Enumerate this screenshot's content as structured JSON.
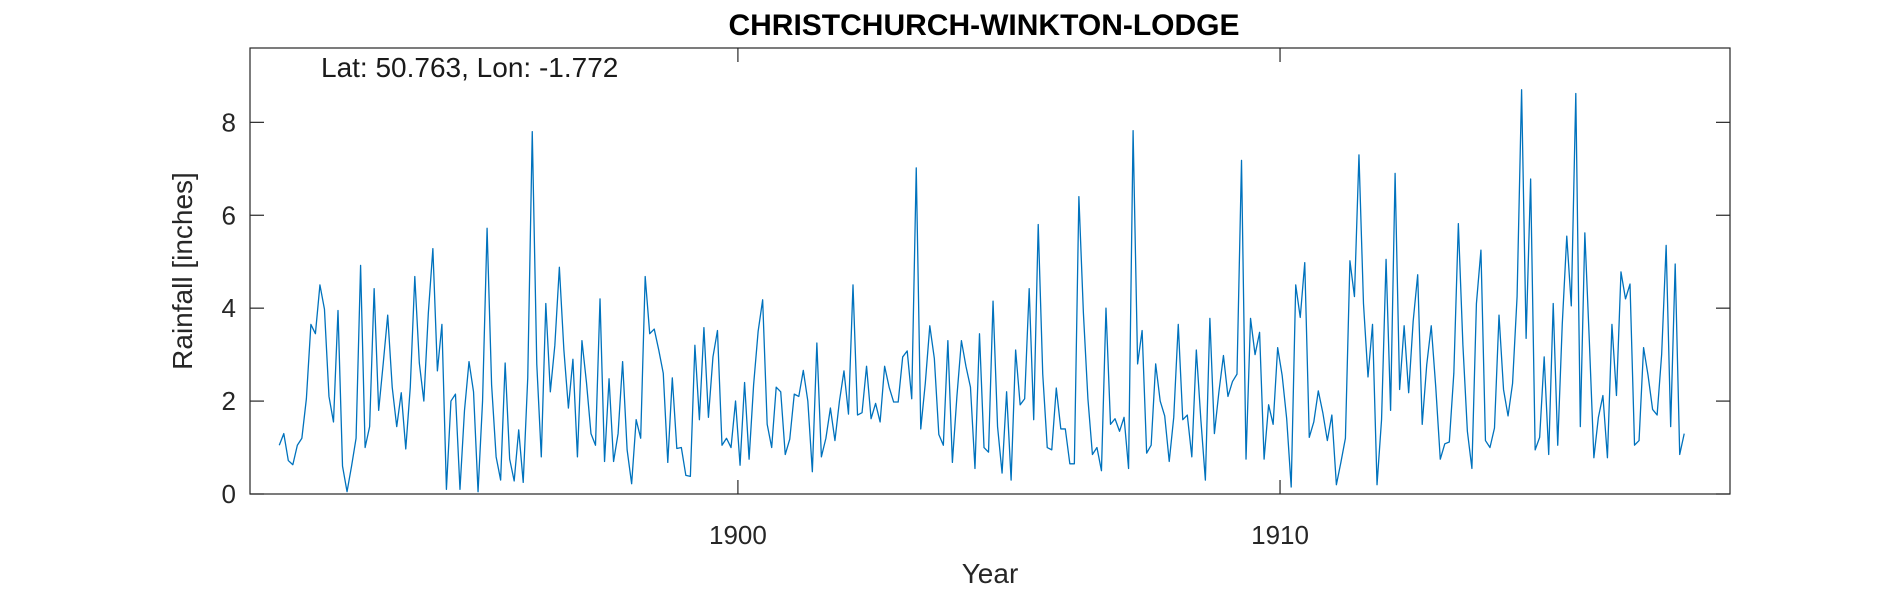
{
  "chart_data": {
    "type": "line",
    "title": "CHRISTCHURCH-WINKTON-LODGE",
    "annotation": "Lat: 50.763, Lon: -1.772",
    "xlabel": "Year",
    "ylabel": "Rainfall [inches]",
    "xlim": [
      1891.0,
      1918.3
    ],
    "ylim": [
      0,
      9.6
    ],
    "xticks": [
      1900,
      1910
    ],
    "yticks": [
      0,
      2,
      4,
      6,
      8
    ],
    "grid": false,
    "color": "#0072bd",
    "series": [
      {
        "x_start": 1891.54,
        "x_step": 0.08333,
        "values": [
          1.05,
          1.3,
          0.72,
          0.63,
          1.05,
          1.2,
          2.05,
          3.65,
          3.45,
          4.5,
          3.98,
          2.1,
          1.55,
          3.95,
          0.6,
          0.05,
          0.6,
          1.2,
          4.92,
          1.0,
          1.45,
          4.42,
          1.8,
          2.8,
          3.85,
          2.3,
          1.45,
          2.18,
          0.97,
          2.3,
          4.68,
          2.82,
          2.0,
          3.9,
          5.28,
          2.65,
          3.65,
          0.1,
          2.0,
          2.15,
          0.1,
          1.8,
          2.85,
          2.2,
          0.05,
          2.0,
          5.72,
          2.35,
          0.8,
          0.3,
          2.82,
          0.75,
          0.28,
          1.38,
          0.25,
          2.5,
          7.8,
          2.8,
          0.8,
          4.1,
          2.2,
          3.2,
          4.88,
          3.1,
          1.85,
          2.9,
          0.8,
          3.3,
          2.4,
          1.3,
          1.05,
          4.2,
          0.7,
          2.48,
          0.7,
          1.3,
          2.85,
          0.95,
          0.22,
          1.6,
          1.2,
          4.68,
          3.45,
          3.55,
          3.1,
          2.6,
          0.68,
          2.5,
          0.98,
          1.0,
          0.4,
          0.38,
          3.2,
          1.6,
          3.58,
          1.65,
          2.95,
          3.52,
          1.05,
          1.2,
          1.0,
          2.0,
          0.62,
          2.4,
          0.75,
          2.35,
          3.5,
          4.18,
          1.5,
          1.0,
          2.3,
          2.2,
          0.85,
          1.18,
          2.15,
          2.1,
          2.66,
          2.0,
          0.48,
          3.25,
          0.8,
          1.2,
          1.85,
          1.15,
          2.0,
          2.65,
          1.72,
          4.5,
          1.7,
          1.75,
          2.75,
          1.62,
          1.95,
          1.55,
          2.75,
          2.3,
          1.98,
          1.98,
          2.95,
          3.08,
          2.05,
          7.02,
          1.4,
          2.38,
          3.62,
          2.92,
          1.28,
          1.05,
          3.3,
          0.68,
          2.1,
          3.3,
          2.75,
          2.3,
          0.55,
          3.45,
          1.0,
          0.9,
          4.15,
          1.45,
          0.45,
          2.2,
          0.3,
          3.1,
          1.92,
          2.05,
          4.42,
          1.6,
          5.8,
          2.58,
          1.0,
          0.95,
          2.28,
          1.4,
          1.4,
          0.65,
          0.65,
          6.4,
          3.9,
          2.05,
          0.85,
          1.0,
          0.5,
          4.0,
          1.5,
          1.62,
          1.35,
          1.65,
          0.55,
          7.82,
          2.8,
          3.52,
          0.88,
          1.05,
          2.8,
          2.0,
          1.68,
          0.7,
          1.65,
          3.65,
          1.6,
          1.7,
          0.8,
          3.1,
          1.6,
          0.3,
          3.78,
          1.3,
          2.2,
          2.98,
          2.1,
          2.42,
          2.58,
          7.18,
          0.75,
          3.78,
          3.0,
          3.48,
          0.75,
          1.92,
          1.5,
          3.15,
          2.55,
          1.62,
          0.15,
          4.5,
          3.8,
          4.98,
          1.22,
          1.55,
          2.22,
          1.75,
          1.15,
          1.7,
          0.2,
          0.68,
          1.2,
          5.02,
          4.25,
          7.3,
          4.1,
          2.52,
          3.65,
          0.2,
          1.6,
          5.05,
          1.8,
          6.9,
          2.25,
          3.62,
          2.18,
          3.72,
          4.72,
          1.5,
          2.78,
          3.62,
          2.3,
          0.75,
          1.08,
          1.12,
          2.6,
          5.82,
          3.22,
          1.35,
          0.55,
          4.1,
          5.25,
          1.15,
          1.0,
          1.42,
          3.85,
          2.25,
          1.68,
          2.38,
          4.25,
          8.7,
          3.35,
          6.78,
          0.95,
          1.22,
          2.95,
          0.85,
          4.1,
          1.05,
          3.65,
          5.55,
          4.05,
          8.62,
          1.45,
          5.62,
          3.28,
          0.78,
          1.65,
          2.12,
          0.78,
          3.65,
          2.12,
          4.78,
          4.2,
          4.52,
          1.05,
          1.15,
          3.15,
          2.55,
          1.82,
          1.7,
          3.0,
          5.35,
          1.45,
          4.95,
          0.85,
          1.3
        ]
      }
    ]
  }
}
